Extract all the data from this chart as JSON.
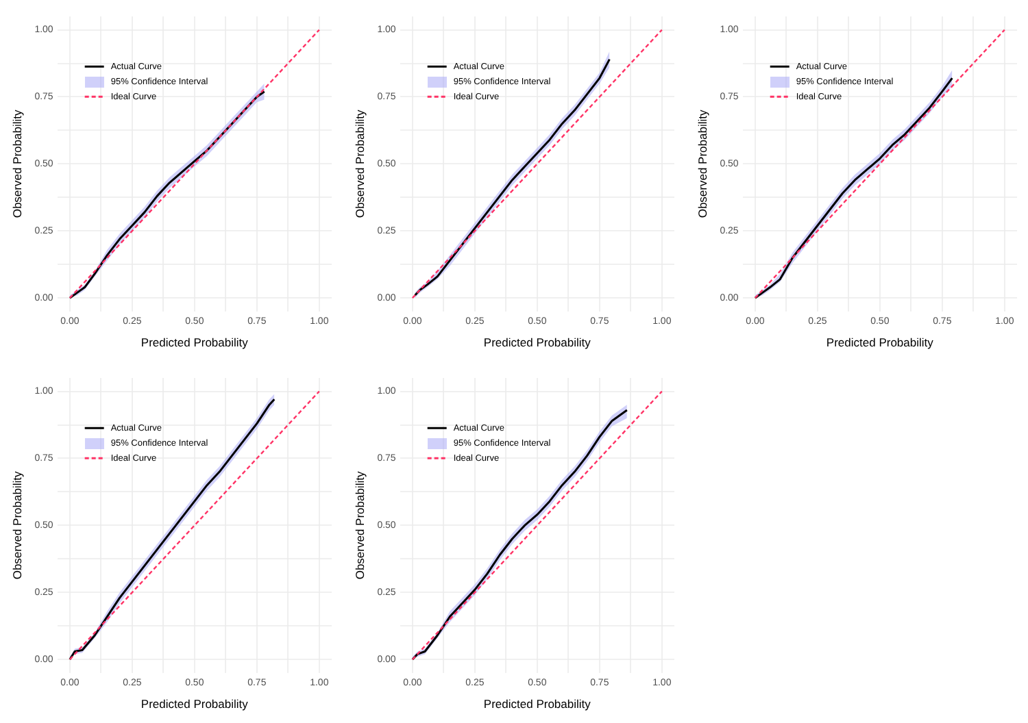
{
  "chart_data": [
    {
      "type": "line",
      "xlabel": "Predicted Probability",
      "ylabel": "Observed Probability",
      "xlim": [
        -0.05,
        1.05
      ],
      "ylim": [
        -0.05,
        1.05
      ],
      "xticks": [
        {
          "value": 0,
          "label": "0.00"
        },
        {
          "value": 0.125,
          "label": null
        },
        {
          "value": 0.25,
          "label": "0.25"
        },
        {
          "value": 0.375,
          "label": null
        },
        {
          "value": 0.5,
          "label": "0.50"
        },
        {
          "value": 0.625,
          "label": null
        },
        {
          "value": 0.75,
          "label": "0.75"
        },
        {
          "value": 0.875,
          "label": null
        },
        {
          "value": 1,
          "label": "1.00"
        }
      ],
      "yticks": [
        {
          "value": 0,
          "label": "0.00"
        },
        {
          "value": 0.125,
          "label": null
        },
        {
          "value": 0.25,
          "label": "0.25"
        },
        {
          "value": 0.375,
          "label": null
        },
        {
          "value": 0.5,
          "label": "0.50"
        },
        {
          "value": 0.625,
          "label": null
        },
        {
          "value": 0.75,
          "label": "0.75"
        },
        {
          "value": 0.875,
          "label": null
        },
        {
          "value": 1,
          "label": "1.00"
        }
      ],
      "grid": true,
      "legend": "top left",
      "annotations": [
        "95% Confidence Interval"
      ],
      "series": [
        {
          "name": "Actual Curve",
          "color": "#000000",
          "x": [
            0,
            0.03,
            0.06,
            0.1,
            0.15,
            0.2,
            0.25,
            0.3,
            0.35,
            0.4,
            0.45,
            0.5,
            0.55,
            0.6,
            0.65,
            0.7,
            0.75,
            0.78
          ],
          "values": [
            0,
            0.02,
            0.04,
            0.09,
            0.16,
            0.22,
            0.27,
            0.32,
            0.38,
            0.43,
            0.47,
            0.51,
            0.55,
            0.6,
            0.65,
            0.7,
            0.75,
            0.77
          ],
          "lower": [
            0,
            0.01,
            0.03,
            0.08,
            0.14,
            0.2,
            0.25,
            0.3,
            0.36,
            0.41,
            0.45,
            0.49,
            0.53,
            0.58,
            0.63,
            0.68,
            0.73,
            0.74
          ],
          "upper": [
            0.01,
            0.03,
            0.05,
            0.1,
            0.18,
            0.24,
            0.29,
            0.34,
            0.4,
            0.45,
            0.49,
            0.53,
            0.57,
            0.62,
            0.67,
            0.72,
            0.77,
            0.8
          ]
        },
        {
          "name": "Ideal Curve",
          "color": "#ff3366",
          "line_style": "dashed",
          "x": [
            0,
            1
          ],
          "values": [
            0,
            1
          ]
        }
      ]
    },
    {
      "type": "line",
      "xlabel": "Predicted Probability",
      "ylabel": "Observed Probability",
      "xlim": [
        -0.05,
        1.05
      ],
      "ylim": [
        -0.05,
        1.05
      ],
      "xticks": [
        {
          "value": 0,
          "label": "0.00"
        },
        {
          "value": 0.125,
          "label": null
        },
        {
          "value": 0.25,
          "label": "0.25"
        },
        {
          "value": 0.375,
          "label": null
        },
        {
          "value": 0.5,
          "label": "0.50"
        },
        {
          "value": 0.625,
          "label": null
        },
        {
          "value": 0.75,
          "label": "0.75"
        },
        {
          "value": 0.875,
          "label": null
        },
        {
          "value": 1,
          "label": "1.00"
        }
      ],
      "yticks": [
        {
          "value": 0,
          "label": "0.00"
        },
        {
          "value": 0.125,
          "label": null
        },
        {
          "value": 0.25,
          "label": "0.25"
        },
        {
          "value": 0.375,
          "label": null
        },
        {
          "value": 0.5,
          "label": "0.50"
        },
        {
          "value": 0.625,
          "label": null
        },
        {
          "value": 0.75,
          "label": "0.75"
        },
        {
          "value": 0.875,
          "label": null
        },
        {
          "value": 1,
          "label": "1.00"
        }
      ],
      "grid": true,
      "legend": "top left",
      "annotations": [
        "95% Confidence Interval"
      ],
      "series": [
        {
          "name": "Actual Curve",
          "color": "#000000",
          "x": [
            0.01,
            0.03,
            0.06,
            0.1,
            0.15,
            0.2,
            0.25,
            0.3,
            0.35,
            0.4,
            0.45,
            0.5,
            0.55,
            0.6,
            0.65,
            0.7,
            0.75,
            0.79
          ],
          "values": [
            0.01,
            0.03,
            0.05,
            0.08,
            0.14,
            0.2,
            0.26,
            0.32,
            0.38,
            0.44,
            0.49,
            0.54,
            0.59,
            0.65,
            0.7,
            0.76,
            0.82,
            0.89
          ],
          "lower": [
            0,
            0.02,
            0.04,
            0.07,
            0.12,
            0.18,
            0.24,
            0.3,
            0.36,
            0.42,
            0.47,
            0.52,
            0.57,
            0.63,
            0.68,
            0.74,
            0.8,
            0.86
          ],
          "upper": [
            0.02,
            0.04,
            0.06,
            0.1,
            0.16,
            0.22,
            0.28,
            0.34,
            0.4,
            0.46,
            0.51,
            0.56,
            0.61,
            0.67,
            0.72,
            0.78,
            0.84,
            0.92
          ]
        },
        {
          "name": "Ideal Curve",
          "color": "#ff3366",
          "line_style": "dashed",
          "x": [
            0,
            1
          ],
          "values": [
            0,
            1
          ]
        }
      ]
    },
    {
      "type": "line",
      "xlabel": "Predicted Probability",
      "ylabel": "Observed Probability",
      "xlim": [
        -0.05,
        1.05
      ],
      "ylim": [
        -0.05,
        1.05
      ],
      "xticks": [
        {
          "value": 0,
          "label": "0.00"
        },
        {
          "value": 0.125,
          "label": null
        },
        {
          "value": 0.25,
          "label": "0.25"
        },
        {
          "value": 0.375,
          "label": null
        },
        {
          "value": 0.5,
          "label": "0.50"
        },
        {
          "value": 0.625,
          "label": null
        },
        {
          "value": 0.75,
          "label": "0.75"
        },
        {
          "value": 0.875,
          "label": null
        },
        {
          "value": 1,
          "label": "1.00"
        }
      ],
      "yticks": [
        {
          "value": 0,
          "label": "0.00"
        },
        {
          "value": 0.125,
          "label": null
        },
        {
          "value": 0.25,
          "label": "0.25"
        },
        {
          "value": 0.375,
          "label": null
        },
        {
          "value": 0.5,
          "label": "0.50"
        },
        {
          "value": 0.625,
          "label": null
        },
        {
          "value": 0.75,
          "label": "0.75"
        },
        {
          "value": 0.875,
          "label": null
        },
        {
          "value": 1,
          "label": "1.00"
        }
      ],
      "grid": true,
      "legend": "top left",
      "annotations": [
        "95% Confidence Interval"
      ],
      "series": [
        {
          "name": "Actual Curve",
          "color": "#000000",
          "x": [
            0,
            0.03,
            0.06,
            0.1,
            0.15,
            0.2,
            0.25,
            0.3,
            0.35,
            0.4,
            0.45,
            0.5,
            0.55,
            0.6,
            0.65,
            0.7,
            0.75,
            0.79
          ],
          "values": [
            0,
            0.02,
            0.04,
            0.07,
            0.15,
            0.21,
            0.27,
            0.33,
            0.39,
            0.44,
            0.48,
            0.52,
            0.57,
            0.61,
            0.66,
            0.71,
            0.77,
            0.82
          ],
          "lower": [
            0,
            0.01,
            0.03,
            0.06,
            0.13,
            0.19,
            0.25,
            0.31,
            0.37,
            0.42,
            0.46,
            0.5,
            0.55,
            0.59,
            0.64,
            0.69,
            0.75,
            0.79
          ],
          "upper": [
            0.01,
            0.03,
            0.05,
            0.09,
            0.17,
            0.23,
            0.29,
            0.35,
            0.41,
            0.46,
            0.5,
            0.54,
            0.59,
            0.63,
            0.68,
            0.73,
            0.79,
            0.85
          ]
        },
        {
          "name": "Ideal Curve",
          "color": "#ff3366",
          "line_style": "dashed",
          "x": [
            0,
            1
          ],
          "values": [
            0,
            1
          ]
        }
      ]
    },
    {
      "type": "line",
      "xlabel": "Predicted Probability",
      "ylabel": "Observed Probability",
      "xlim": [
        -0.05,
        1.05
      ],
      "ylim": [
        -0.05,
        1.05
      ],
      "xticks": [
        {
          "value": 0,
          "label": "0.00"
        },
        {
          "value": 0.125,
          "label": null
        },
        {
          "value": 0.25,
          "label": "0.25"
        },
        {
          "value": 0.375,
          "label": null
        },
        {
          "value": 0.5,
          "label": "0.50"
        },
        {
          "value": 0.625,
          "label": null
        },
        {
          "value": 0.75,
          "label": "0.75"
        },
        {
          "value": 0.875,
          "label": null
        },
        {
          "value": 1,
          "label": "1.00"
        }
      ],
      "yticks": [
        {
          "value": 0,
          "label": "0.00"
        },
        {
          "value": 0.125,
          "label": null
        },
        {
          "value": 0.25,
          "label": "0.25"
        },
        {
          "value": 0.375,
          "label": null
        },
        {
          "value": 0.5,
          "label": "0.50"
        },
        {
          "value": 0.625,
          "label": null
        },
        {
          "value": 0.75,
          "label": "0.75"
        },
        {
          "value": 0.875,
          "label": null
        },
        {
          "value": 1,
          "label": "1.00"
        }
      ],
      "grid": true,
      "legend": "top left",
      "annotations": [
        "95% Confidence Interval"
      ],
      "series": [
        {
          "name": "Actual Curve",
          "color": "#000000",
          "x": [
            0,
            0.02,
            0.05,
            0.1,
            0.15,
            0.2,
            0.25,
            0.3,
            0.35,
            0.4,
            0.45,
            0.5,
            0.55,
            0.6,
            0.65,
            0.7,
            0.75,
            0.8,
            0.82
          ],
          "values": [
            0,
            0.03,
            0.035,
            0.09,
            0.16,
            0.23,
            0.29,
            0.35,
            0.41,
            0.47,
            0.53,
            0.59,
            0.65,
            0.7,
            0.76,
            0.82,
            0.88,
            0.95,
            0.97
          ],
          "lower": [
            0,
            0.02,
            0.025,
            0.08,
            0.14,
            0.21,
            0.27,
            0.33,
            0.39,
            0.45,
            0.51,
            0.57,
            0.63,
            0.68,
            0.74,
            0.8,
            0.86,
            0.93,
            0.95
          ],
          "upper": [
            0.01,
            0.04,
            0.045,
            0.1,
            0.18,
            0.25,
            0.31,
            0.37,
            0.43,
            0.49,
            0.55,
            0.61,
            0.67,
            0.72,
            0.78,
            0.84,
            0.9,
            0.97,
            0.99
          ]
        },
        {
          "name": "Ideal Curve",
          "color": "#ff3366",
          "line_style": "dashed",
          "x": [
            0,
            1
          ],
          "values": [
            0,
            1
          ]
        }
      ]
    },
    {
      "type": "line",
      "xlabel": "Predicted Probability",
      "ylabel": "Observed Probability",
      "xlim": [
        -0.05,
        1.05
      ],
      "ylim": [
        -0.05,
        1.05
      ],
      "xticks": [
        {
          "value": 0,
          "label": "0.00"
        },
        {
          "value": 0.125,
          "label": null
        },
        {
          "value": 0.25,
          "label": "0.25"
        },
        {
          "value": 0.375,
          "label": null
        },
        {
          "value": 0.5,
          "label": "0.50"
        },
        {
          "value": 0.625,
          "label": null
        },
        {
          "value": 0.75,
          "label": "0.75"
        },
        {
          "value": 0.875,
          "label": null
        },
        {
          "value": 1,
          "label": "1.00"
        }
      ],
      "yticks": [
        {
          "value": 0,
          "label": "0.00"
        },
        {
          "value": 0.125,
          "label": null
        },
        {
          "value": 0.25,
          "label": "0.25"
        },
        {
          "value": 0.375,
          "label": null
        },
        {
          "value": 0.5,
          "label": "0.50"
        },
        {
          "value": 0.625,
          "label": null
        },
        {
          "value": 0.75,
          "label": "0.75"
        },
        {
          "value": 0.875,
          "label": null
        },
        {
          "value": 1,
          "label": "1.00"
        }
      ],
      "grid": true,
      "legend": "top left",
      "annotations": [
        "95% Confidence Interval"
      ],
      "series": [
        {
          "name": "Actual Curve",
          "color": "#000000",
          "x": [
            0,
            0.02,
            0.05,
            0.1,
            0.15,
            0.2,
            0.25,
            0.3,
            0.35,
            0.4,
            0.45,
            0.5,
            0.55,
            0.6,
            0.65,
            0.7,
            0.75,
            0.8,
            0.86
          ],
          "values": [
            0,
            0.02,
            0.03,
            0.09,
            0.16,
            0.21,
            0.26,
            0.32,
            0.39,
            0.45,
            0.5,
            0.54,
            0.59,
            0.65,
            0.7,
            0.76,
            0.83,
            0.89,
            0.93
          ],
          "lower": [
            0,
            0.01,
            0.02,
            0.08,
            0.14,
            0.19,
            0.24,
            0.3,
            0.37,
            0.43,
            0.48,
            0.52,
            0.57,
            0.63,
            0.68,
            0.74,
            0.81,
            0.87,
            0.9
          ],
          "upper": [
            0.01,
            0.03,
            0.04,
            0.1,
            0.18,
            0.23,
            0.28,
            0.34,
            0.41,
            0.47,
            0.52,
            0.56,
            0.61,
            0.67,
            0.72,
            0.78,
            0.85,
            0.91,
            0.95
          ]
        },
        {
          "name": "Ideal Curve",
          "color": "#ff3366",
          "line_style": "dashed",
          "x": [
            0,
            1
          ],
          "values": [
            0,
            1
          ]
        }
      ]
    }
  ]
}
